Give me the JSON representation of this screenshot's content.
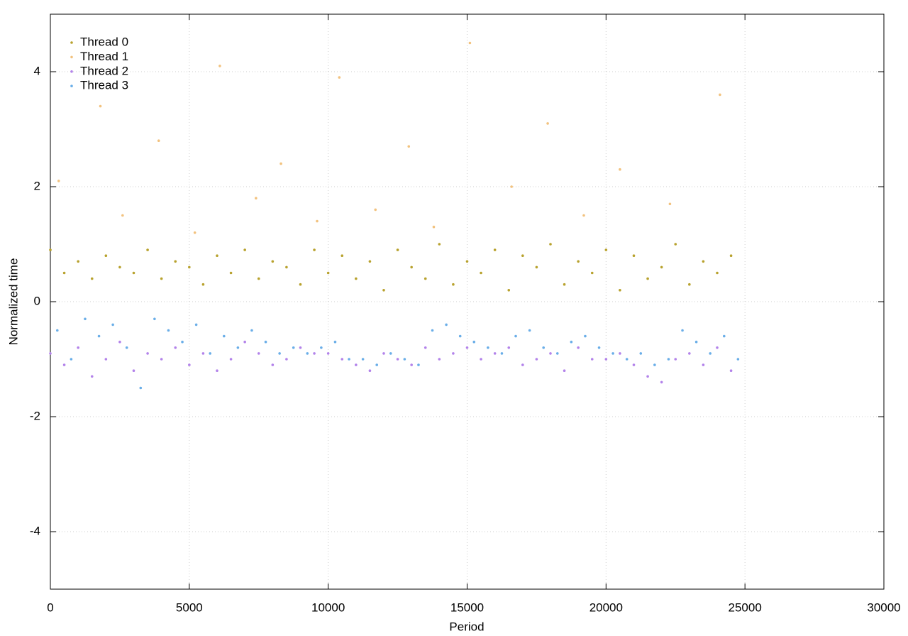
{
  "chart_data": {
    "type": "scatter",
    "xlabel": "Period",
    "ylabel": "Normalized time",
    "xlim": [
      0,
      30000
    ],
    "ylim": [
      -5,
      5
    ],
    "xticks": [
      0,
      5000,
      10000,
      15000,
      20000,
      25000,
      30000
    ],
    "yticks": [
      -4,
      -2,
      0,
      2,
      4
    ],
    "grid": true,
    "legend": "upper left",
    "series": [
      {
        "name": "Thread 0",
        "color": "#b8a22e",
        "x": [
          0,
          500,
          1000,
          1500,
          2000,
          2500,
          3000,
          3500,
          4000,
          4500,
          5000,
          5500,
          6000,
          6500,
          7000,
          7500,
          8000,
          8500,
          9000,
          9500,
          10000,
          10500,
          11000,
          11500,
          12000,
          12500,
          13000,
          13500,
          14000,
          14500,
          15000,
          15500,
          16000,
          16500,
          17000,
          17500,
          18000,
          18500,
          19000,
          19500,
          20000,
          20500,
          21000,
          21500,
          22000,
          22500,
          23000,
          23500,
          24000,
          24500
        ],
        "values": [
          0.9,
          0.5,
          0.7,
          0.4,
          0.8,
          0.6,
          0.5,
          0.9,
          0.4,
          0.7,
          0.6,
          0.3,
          0.8,
          0.5,
          0.9,
          0.4,
          0.7,
          0.6,
          0.3,
          0.9,
          0.5,
          0.8,
          0.4,
          0.7,
          0.2,
          0.9,
          0.6,
          0.4,
          1.0,
          0.3,
          0.7,
          0.5,
          0.9,
          0.2,
          0.8,
          0.6,
          1.0,
          0.3,
          0.7,
          0.5,
          0.9,
          0.2,
          0.8,
          0.4,
          0.6,
          1.0,
          0.3,
          0.7,
          0.5,
          0.8
        ]
      },
      {
        "name": "Thread 1",
        "color": "#f2c27e",
        "x": [
          300,
          1800,
          2600,
          3900,
          5200,
          6100,
          7400,
          8300,
          9600,
          10400,
          11700,
          12900,
          13800,
          15100,
          16600,
          17900,
          19200,
          20500,
          22300,
          24100
        ],
        "values": [
          2.1,
          3.4,
          1.5,
          2.8,
          1.2,
          4.1,
          1.8,
          2.4,
          1.4,
          3.9,
          1.6,
          2.7,
          1.3,
          4.5,
          2.0,
          3.1,
          1.5,
          2.3,
          1.7,
          3.6
        ]
      },
      {
        "name": "Thread 2",
        "color": "#b383ea",
        "x": [
          0,
          500,
          1000,
          1500,
          2000,
          2500,
          3000,
          3500,
          4000,
          4500,
          5000,
          5500,
          6000,
          6500,
          7000,
          7500,
          8000,
          8500,
          9000,
          9500,
          10000,
          10500,
          11000,
          11500,
          12000,
          12500,
          13000,
          13500,
          14000,
          14500,
          15000,
          15500,
          16000,
          16500,
          17000,
          17500,
          18000,
          18500,
          19000,
          19500,
          20000,
          20500,
          21000,
          21500,
          22000,
          22500,
          23000,
          23500,
          24000,
          24500
        ],
        "values": [
          -0.9,
          -1.1,
          -0.8,
          -1.3,
          -1.0,
          -0.7,
          -1.2,
          -0.9,
          -1.0,
          -0.8,
          -1.1,
          -0.9,
          -1.2,
          -1.0,
          -0.7,
          -0.9,
          -1.1,
          -1.0,
          -0.8,
          -0.9,
          -0.9,
          -1.0,
          -1.1,
          -1.2,
          -0.9,
          -1.0,
          -1.1,
          -0.8,
          -1.0,
          -0.9,
          -0.8,
          -1.0,
          -0.9,
          -0.8,
          -1.1,
          -1.0,
          -0.9,
          -1.2,
          -0.8,
          -1.0,
          -1.0,
          -0.9,
          -1.1,
          -1.3,
          -1.4,
          -1.0,
          -0.9,
          -1.1,
          -0.8,
          -1.2
        ]
      },
      {
        "name": "Thread 3",
        "color": "#6aaee8",
        "x": [
          250,
          750,
          1250,
          1750,
          2250,
          2750,
          3250,
          3750,
          4250,
          4750,
          5250,
          5750,
          6250,
          6750,
          7250,
          7750,
          8250,
          8750,
          9250,
          9750,
          10250,
          10750,
          11250,
          11750,
          12250,
          12750,
          13250,
          13750,
          14250,
          14750,
          15250,
          15750,
          16250,
          16750,
          17250,
          17750,
          18250,
          18750,
          19250,
          19750,
          20250,
          20750,
          21250,
          21750,
          22250,
          22750,
          23250,
          23750,
          24250,
          24750
        ],
        "values": [
          -0.5,
          -1.0,
          -0.3,
          -0.6,
          -0.4,
          -0.8,
          -1.5,
          -0.3,
          -0.5,
          -0.7,
          -0.4,
          -0.9,
          -0.6,
          -0.8,
          -0.5,
          -0.7,
          -0.9,
          -0.8,
          -0.9,
          -0.8,
          -0.7,
          -1.0,
          -1.0,
          -1.1,
          -0.9,
          -1.0,
          -1.1,
          -0.5,
          -0.4,
          -0.6,
          -0.7,
          -0.8,
          -0.9,
          -0.6,
          -0.5,
          -0.8,
          -0.9,
          -0.7,
          -0.6,
          -0.8,
          -0.9,
          -1.0,
          -0.9,
          -1.1,
          -1.0,
          -0.5,
          -0.7,
          -0.9,
          -0.6,
          -1.0
        ]
      }
    ]
  }
}
